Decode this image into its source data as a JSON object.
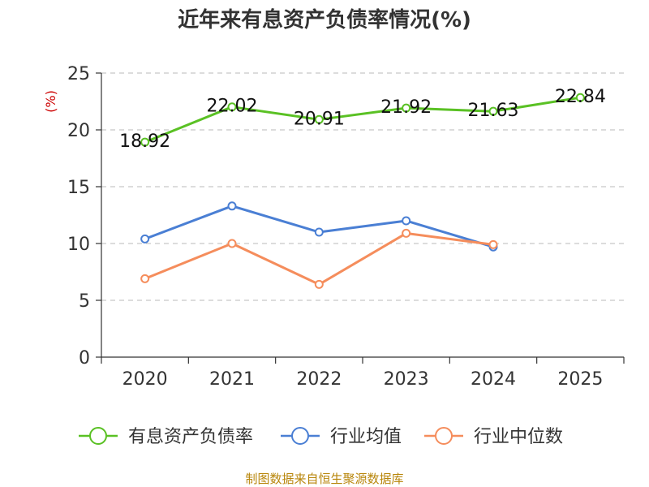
{
  "chart_data": {
    "type": "line",
    "title": "近年来有息资产负债率情况(%)",
    "ylabel": "(%)",
    "ylim": [
      0,
      25
    ],
    "yticks": [
      0,
      5,
      10,
      15,
      20,
      25
    ],
    "grid": true,
    "legend_position": "bottom",
    "categories": [
      "2020",
      "2021",
      "2022",
      "2023",
      "2024",
      "2025"
    ],
    "series": [
      {
        "name": "有息资产负债率",
        "color": "#5ac124",
        "values": [
          18.92,
          22.02,
          20.91,
          21.92,
          21.63,
          22.84
        ],
        "show_labels": true
      },
      {
        "name": "行业均值",
        "color": "#4a7fd4",
        "values": [
          10.4,
          13.3,
          11.0,
          12.0,
          9.7,
          null
        ],
        "show_labels": false
      },
      {
        "name": "行业中位数",
        "color": "#f58d5c",
        "values": [
          6.9,
          10.0,
          6.4,
          10.9,
          9.9,
          null
        ],
        "show_labels": false
      }
    ],
    "source": "制图数据来自恒生聚源数据库"
  }
}
